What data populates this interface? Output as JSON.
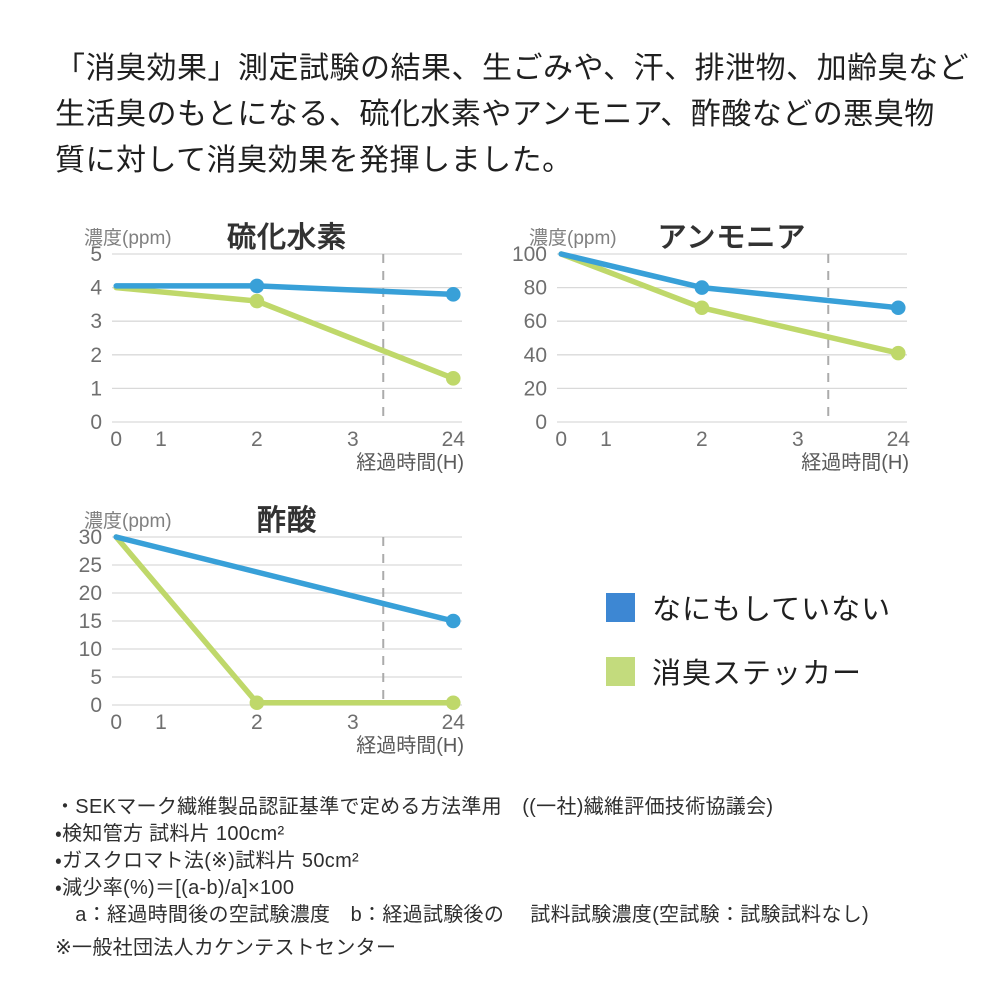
{
  "intro": {
    "text": "「消臭効果」測定試験の結果、生ごみや、汗、排泄物、加齢臭など\n生活臭のもとになる、硫化水素やアンモニア、酢酸などの悪臭物\n質に対して消臭効果を発揮しました。"
  },
  "colors": {
    "line_blue": "#38a0d8",
    "line_green": "#bfd86a",
    "legend_blue": "#3d87d3",
    "legend_green": "#c3db7d",
    "grid": "#d9d9d9",
    "dash": "#ababab",
    "tick_text": "#6f6f6f"
  },
  "chart_data": [
    {
      "type": "line",
      "title": "硫化水素",
      "ylabel": "濃度(ppm)",
      "xlabel": "経過時間(H)",
      "x_unit": "hours",
      "x_tick_labels": [
        "0",
        "1",
        "2",
        "3",
        "24"
      ],
      "x_tick_pos": [
        0.012,
        0.14,
        0.414,
        0.688,
        0.975
      ],
      "y_ticks": [
        0,
        1,
        2,
        3,
        4,
        5
      ],
      "ylim": [
        0,
        5
      ],
      "grid": "horizontal",
      "axis_break_x": 0.775,
      "series": [
        {
          "name": "なにもしていない",
          "color": "#38a0d8",
          "x": [
            0,
            2,
            24
          ],
          "xpos": [
            0.012,
            0.414,
            0.975
          ],
          "values": [
            4.05,
            4.05,
            3.8
          ],
          "markers": [
            false,
            true,
            true
          ]
        },
        {
          "name": "消臭ステッカー",
          "color": "#bfd86a",
          "x": [
            0,
            2,
            24
          ],
          "xpos": [
            0.012,
            0.414,
            0.975
          ],
          "values": [
            4.0,
            3.6,
            1.3
          ],
          "markers": [
            false,
            true,
            true
          ]
        }
      ]
    },
    {
      "type": "line",
      "title": "アンモニア",
      "ylabel": "濃度(ppm)",
      "xlabel": "経過時間(H)",
      "x_unit": "hours",
      "x_tick_labels": [
        "0",
        "1",
        "2",
        "3",
        "24"
      ],
      "x_tick_pos": [
        0.012,
        0.14,
        0.414,
        0.688,
        0.975
      ],
      "y_ticks": [
        0,
        20,
        40,
        60,
        80,
        100
      ],
      "ylim": [
        0,
        100
      ],
      "grid": "horizontal",
      "axis_break_x": 0.775,
      "series": [
        {
          "name": "なにもしていない",
          "color": "#38a0d8",
          "x": [
            0,
            2,
            24
          ],
          "xpos": [
            0.012,
            0.414,
            0.975
          ],
          "values": [
            100,
            80,
            68
          ],
          "markers": [
            false,
            true,
            true
          ]
        },
        {
          "name": "消臭ステッカー",
          "color": "#bfd86a",
          "x": [
            0,
            2,
            24
          ],
          "xpos": [
            0.012,
            0.414,
            0.975
          ],
          "values": [
            100,
            68,
            41
          ],
          "markers": [
            false,
            true,
            true
          ]
        }
      ]
    },
    {
      "type": "line",
      "title": "酢酸",
      "ylabel": "濃度(ppm)",
      "xlabel": "経過時間(H)",
      "x_unit": "hours",
      "x_tick_labels": [
        "0",
        "1",
        "2",
        "3",
        "24"
      ],
      "x_tick_pos": [
        0.012,
        0.14,
        0.414,
        0.688,
        0.975
      ],
      "y_ticks": [
        0,
        5,
        10,
        15,
        20,
        25,
        30
      ],
      "ylim": [
        0,
        30
      ],
      "grid": "horizontal",
      "axis_break_x": 0.775,
      "series": [
        {
          "name": "なにもしていない",
          "color": "#38a0d8",
          "x": [
            0,
            24
          ],
          "xpos": [
            0.012,
            0.975
          ],
          "values": [
            30,
            15
          ],
          "markers": [
            false,
            true
          ]
        },
        {
          "name": "消臭ステッカー",
          "color": "#bfd86a",
          "x": [
            0,
            2,
            24
          ],
          "xpos": [
            0.012,
            0.414,
            0.975
          ],
          "values": [
            30,
            0.4,
            0.4
          ],
          "markers": [
            false,
            true,
            true
          ]
        }
      ]
    }
  ],
  "legend": {
    "items": [
      {
        "label": "なにもしていない",
        "color": "#3d87d3"
      },
      {
        "label": "消臭ステッカー",
        "color": "#c3db7d"
      }
    ]
  },
  "footnotes": {
    "items": [
      "・SEKマーク繊維製品認証基準で定める方法準用　((一社)繊維評価技術協議会)",
      "・検知管方 試料片 100cm²",
      "・ガスクロマト法(※)試料片 50cm²",
      "・減少率(%)＝[(a-b)/a]×100",
      "　a：経過時間後の空試験濃度　b：経過試験後の　 試料試験濃度(空試験：試験試料なし)"
    ]
  },
  "certification_note": "※一般社団法人カケンテストセンター"
}
